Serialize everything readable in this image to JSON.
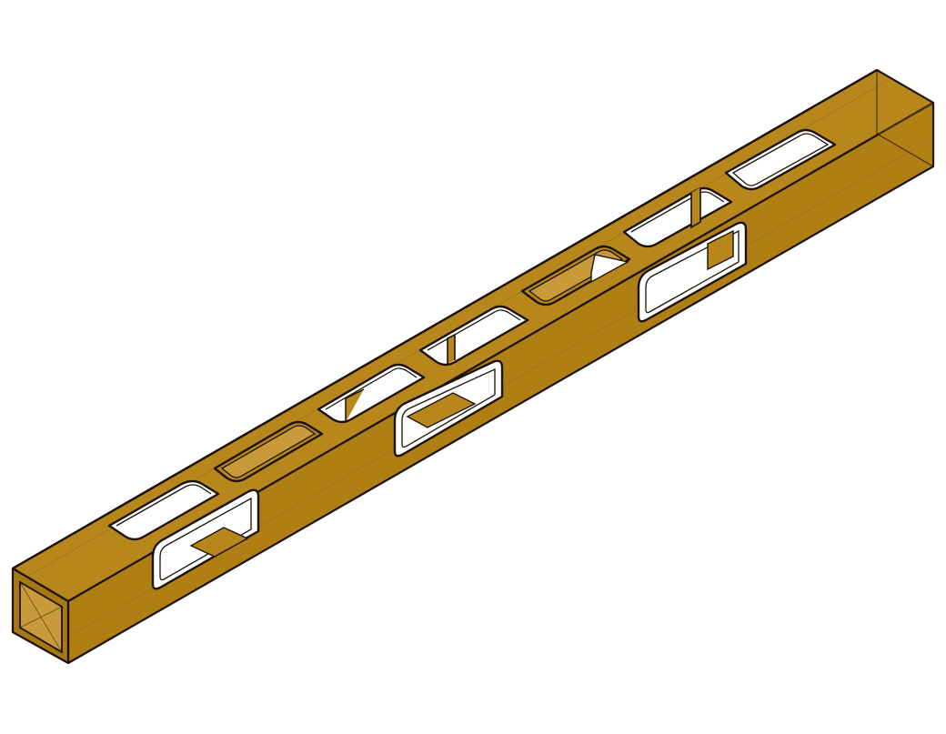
{
  "scene": {
    "subject": "hollow-square-tube-with-rectangular-cutouts",
    "colors": {
      "background": "#ffffff",
      "top_face": "#b8871c",
      "front_face": "#b07f14",
      "end_face": "#a77712",
      "inner_wall": "#c99a3a",
      "edge": "#1a1206",
      "highlight": "#e3c27a"
    },
    "top_cutouts": 7,
    "side_cutouts": 3
  }
}
